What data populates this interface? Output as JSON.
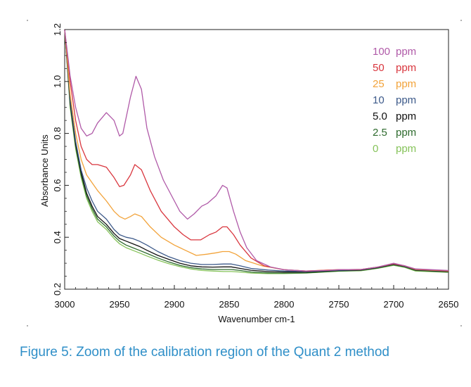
{
  "caption": "Figure 5: Zoom of the calibration region of the Quant 2 method",
  "chart_data": {
    "type": "line",
    "xlabel": "Wavenumber cm-1",
    "ylabel": "Absorbance Units",
    "xlim": [
      3000,
      2650
    ],
    "ylim": [
      0.2,
      1.2
    ],
    "x_reversed": true,
    "grid": false,
    "legend_position": "top-right",
    "x_ticks": [
      "3000",
      "2950",
      "2900",
      "2850",
      "2800",
      "2750",
      "2700",
      "2650"
    ],
    "y_ticks": [
      "0.2",
      "0.4",
      "0.6",
      "0.8",
      "1.0",
      "1.2"
    ],
    "series": [
      {
        "name": "100 ppm",
        "unit": "ppm",
        "value_label": "100",
        "color": "#b05aa8",
        "points": [
          [
            3000,
            1.2
          ],
          [
            2995,
            1.02
          ],
          [
            2990,
            0.9
          ],
          [
            2985,
            0.82
          ],
          [
            2980,
            0.79
          ],
          [
            2975,
            0.8
          ],
          [
            2970,
            0.84
          ],
          [
            2962,
            0.88
          ],
          [
            2955,
            0.85
          ],
          [
            2950,
            0.79
          ],
          [
            2947,
            0.8
          ],
          [
            2940,
            0.94
          ],
          [
            2935,
            1.02
          ],
          [
            2930,
            0.97
          ],
          [
            2925,
            0.82
          ],
          [
            2918,
            0.71
          ],
          [
            2910,
            0.62
          ],
          [
            2900,
            0.54
          ],
          [
            2895,
            0.5
          ],
          [
            2888,
            0.47
          ],
          [
            2882,
            0.49
          ],
          [
            2875,
            0.52
          ],
          [
            2870,
            0.53
          ],
          [
            2862,
            0.56
          ],
          [
            2856,
            0.6
          ],
          [
            2852,
            0.59
          ],
          [
            2846,
            0.5
          ],
          [
            2840,
            0.42
          ],
          [
            2834,
            0.36
          ],
          [
            2825,
            0.31
          ],
          [
            2812,
            0.285
          ],
          [
            2800,
            0.275
          ],
          [
            2780,
            0.27
          ],
          [
            2760,
            0.272
          ],
          [
            2750,
            0.275
          ],
          [
            2730,
            0.276
          ],
          [
            2715,
            0.285
          ],
          [
            2700,
            0.3
          ],
          [
            2690,
            0.29
          ],
          [
            2680,
            0.278
          ],
          [
            2650,
            0.272
          ]
        ]
      },
      {
        "name": "50 ppm",
        "unit": "ppm",
        "value_label": "50",
        "color": "#d9363e",
        "points": [
          [
            3000,
            1.2
          ],
          [
            2995,
            1.0
          ],
          [
            2990,
            0.85
          ],
          [
            2985,
            0.75
          ],
          [
            2980,
            0.7
          ],
          [
            2975,
            0.68
          ],
          [
            2970,
            0.68
          ],
          [
            2962,
            0.67
          ],
          [
            2955,
            0.63
          ],
          [
            2950,
            0.595
          ],
          [
            2946,
            0.6
          ],
          [
            2940,
            0.64
          ],
          [
            2936,
            0.68
          ],
          [
            2930,
            0.66
          ],
          [
            2922,
            0.58
          ],
          [
            2912,
            0.5
          ],
          [
            2900,
            0.44
          ],
          [
            2892,
            0.41
          ],
          [
            2885,
            0.39
          ],
          [
            2876,
            0.39
          ],
          [
            2868,
            0.41
          ],
          [
            2862,
            0.42
          ],
          [
            2856,
            0.44
          ],
          [
            2852,
            0.44
          ],
          [
            2846,
            0.41
          ],
          [
            2840,
            0.37
          ],
          [
            2830,
            0.32
          ],
          [
            2818,
            0.29
          ],
          [
            2800,
            0.275
          ],
          [
            2780,
            0.27
          ],
          [
            2750,
            0.275
          ],
          [
            2730,
            0.276
          ],
          [
            2715,
            0.285
          ],
          [
            2700,
            0.298
          ],
          [
            2690,
            0.29
          ],
          [
            2680,
            0.277
          ],
          [
            2650,
            0.271
          ]
        ]
      },
      {
        "name": "25 ppm",
        "unit": "ppm",
        "value_label": "25",
        "color": "#f2a33a",
        "points": [
          [
            3000,
            1.2
          ],
          [
            2995,
            0.95
          ],
          [
            2990,
            0.8
          ],
          [
            2985,
            0.7
          ],
          [
            2980,
            0.64
          ],
          [
            2975,
            0.61
          ],
          [
            2970,
            0.58
          ],
          [
            2962,
            0.54
          ],
          [
            2955,
            0.5
          ],
          [
            2950,
            0.48
          ],
          [
            2945,
            0.47
          ],
          [
            2940,
            0.48
          ],
          [
            2936,
            0.49
          ],
          [
            2930,
            0.48
          ],
          [
            2922,
            0.44
          ],
          [
            2912,
            0.4
          ],
          [
            2900,
            0.37
          ],
          [
            2890,
            0.35
          ],
          [
            2880,
            0.33
          ],
          [
            2870,
            0.335
          ],
          [
            2862,
            0.34
          ],
          [
            2856,
            0.345
          ],
          [
            2850,
            0.345
          ],
          [
            2844,
            0.335
          ],
          [
            2835,
            0.31
          ],
          [
            2820,
            0.29
          ],
          [
            2800,
            0.275
          ],
          [
            2780,
            0.27
          ],
          [
            2750,
            0.275
          ],
          [
            2730,
            0.276
          ],
          [
            2715,
            0.285
          ],
          [
            2700,
            0.298
          ],
          [
            2690,
            0.29
          ],
          [
            2680,
            0.276
          ],
          [
            2650,
            0.27
          ]
        ]
      },
      {
        "name": "10 ppm",
        "unit": "ppm",
        "value_label": "10",
        "color": "#3d5a8a",
        "points": [
          [
            3000,
            1.2
          ],
          [
            2995,
            0.93
          ],
          [
            2990,
            0.77
          ],
          [
            2985,
            0.66
          ],
          [
            2980,
            0.59
          ],
          [
            2975,
            0.54
          ],
          [
            2970,
            0.5
          ],
          [
            2962,
            0.47
          ],
          [
            2955,
            0.43
          ],
          [
            2950,
            0.41
          ],
          [
            2944,
            0.4
          ],
          [
            2938,
            0.395
          ],
          [
            2932,
            0.385
          ],
          [
            2925,
            0.37
          ],
          [
            2915,
            0.345
          ],
          [
            2905,
            0.325
          ],
          [
            2895,
            0.31
          ],
          [
            2885,
            0.3
          ],
          [
            2875,
            0.295
          ],
          [
            2865,
            0.295
          ],
          [
            2855,
            0.297
          ],
          [
            2848,
            0.297
          ],
          [
            2840,
            0.29
          ],
          [
            2830,
            0.28
          ],
          [
            2815,
            0.274
          ],
          [
            2800,
            0.27
          ],
          [
            2780,
            0.268
          ],
          [
            2750,
            0.273
          ],
          [
            2730,
            0.275
          ],
          [
            2715,
            0.284
          ],
          [
            2700,
            0.297
          ],
          [
            2690,
            0.289
          ],
          [
            2680,
            0.275
          ],
          [
            2650,
            0.269
          ]
        ]
      },
      {
        "name": "5.0 ppm",
        "unit": "ppm",
        "value_label": "5.0",
        "color": "#111111",
        "points": [
          [
            3000,
            1.2
          ],
          [
            2995,
            0.92
          ],
          [
            2990,
            0.76
          ],
          [
            2985,
            0.65
          ],
          [
            2980,
            0.57
          ],
          [
            2975,
            0.52
          ],
          [
            2970,
            0.48
          ],
          [
            2962,
            0.45
          ],
          [
            2955,
            0.415
          ],
          [
            2950,
            0.395
          ],
          [
            2944,
            0.385
          ],
          [
            2938,
            0.375
          ],
          [
            2932,
            0.365
          ],
          [
            2925,
            0.35
          ],
          [
            2915,
            0.33
          ],
          [
            2905,
            0.315
          ],
          [
            2895,
            0.3
          ],
          [
            2885,
            0.29
          ],
          [
            2875,
            0.286
          ],
          [
            2865,
            0.285
          ],
          [
            2855,
            0.286
          ],
          [
            2848,
            0.286
          ],
          [
            2840,
            0.28
          ],
          [
            2830,
            0.273
          ],
          [
            2815,
            0.268
          ],
          [
            2800,
            0.266
          ],
          [
            2780,
            0.266
          ],
          [
            2750,
            0.272
          ],
          [
            2730,
            0.274
          ],
          [
            2715,
            0.283
          ],
          [
            2700,
            0.296
          ],
          [
            2690,
            0.288
          ],
          [
            2680,
            0.274
          ],
          [
            2650,
            0.268
          ]
        ]
      },
      {
        "name": "2.5 ppm",
        "unit": "ppm",
        "value_label": "2.5",
        "color": "#2e6b2e",
        "points": [
          [
            3000,
            1.2
          ],
          [
            2995,
            0.91
          ],
          [
            2990,
            0.75
          ],
          [
            2985,
            0.64
          ],
          [
            2980,
            0.56
          ],
          [
            2975,
            0.51
          ],
          [
            2970,
            0.47
          ],
          [
            2962,
            0.44
          ],
          [
            2955,
            0.405
          ],
          [
            2950,
            0.385
          ],
          [
            2944,
            0.37
          ],
          [
            2938,
            0.36
          ],
          [
            2932,
            0.35
          ],
          [
            2925,
            0.338
          ],
          [
            2915,
            0.32
          ],
          [
            2905,
            0.305
          ],
          [
            2895,
            0.292
          ],
          [
            2885,
            0.283
          ],
          [
            2875,
            0.278
          ],
          [
            2865,
            0.276
          ],
          [
            2855,
            0.276
          ],
          [
            2848,
            0.276
          ],
          [
            2840,
            0.272
          ],
          [
            2830,
            0.266
          ],
          [
            2815,
            0.263
          ],
          [
            2800,
            0.262
          ],
          [
            2780,
            0.263
          ],
          [
            2750,
            0.27
          ],
          [
            2730,
            0.272
          ],
          [
            2715,
            0.281
          ],
          [
            2700,
            0.294
          ],
          [
            2690,
            0.286
          ],
          [
            2680,
            0.272
          ],
          [
            2650,
            0.266
          ]
        ]
      },
      {
        "name": "0 ppm",
        "unit": "ppm",
        "value_label": "0",
        "color": "#86c35a",
        "points": [
          [
            3000,
            1.2
          ],
          [
            2995,
            0.9
          ],
          [
            2990,
            0.74
          ],
          [
            2985,
            0.63
          ],
          [
            2980,
            0.55
          ],
          [
            2975,
            0.5
          ],
          [
            2970,
            0.46
          ],
          [
            2962,
            0.43
          ],
          [
            2955,
            0.395
          ],
          [
            2950,
            0.375
          ],
          [
            2944,
            0.36
          ],
          [
            2938,
            0.35
          ],
          [
            2932,
            0.34
          ],
          [
            2925,
            0.328
          ],
          [
            2915,
            0.312
          ],
          [
            2905,
            0.298
          ],
          [
            2895,
            0.287
          ],
          [
            2885,
            0.278
          ],
          [
            2875,
            0.272
          ],
          [
            2865,
            0.27
          ],
          [
            2855,
            0.268
          ],
          [
            2848,
            0.268
          ],
          [
            2840,
            0.266
          ],
          [
            2830,
            0.262
          ],
          [
            2815,
            0.26
          ],
          [
            2800,
            0.26
          ],
          [
            2780,
            0.262
          ],
          [
            2750,
            0.269
          ],
          [
            2730,
            0.271
          ],
          [
            2715,
            0.28
          ],
          [
            2700,
            0.292
          ],
          [
            2690,
            0.284
          ],
          [
            2680,
            0.27
          ],
          [
            2650,
            0.265
          ]
        ]
      }
    ]
  }
}
